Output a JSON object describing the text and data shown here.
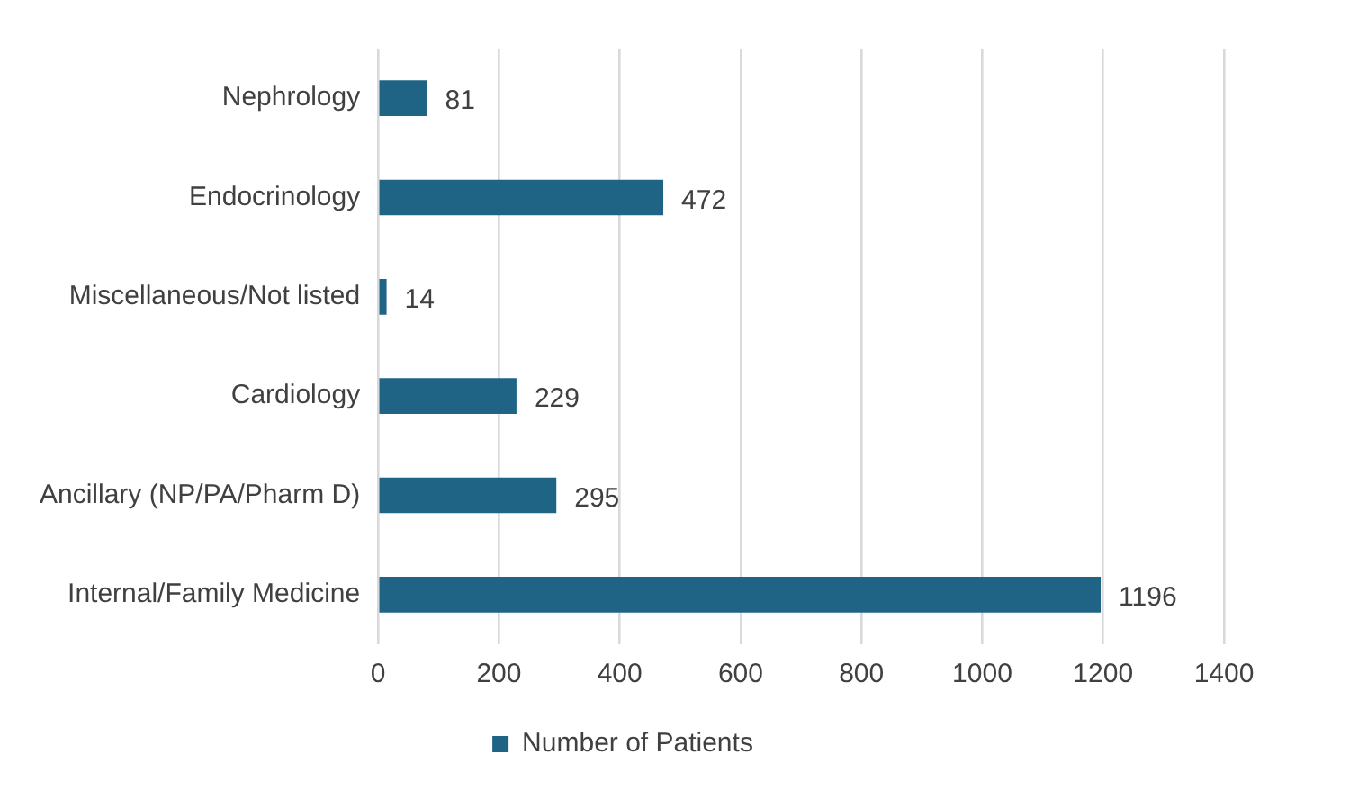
{
  "chart_data": {
    "type": "bar",
    "orientation": "horizontal",
    "categories": [
      "Nephrology",
      "Endocrinology",
      "Miscellaneous/Not listed",
      "Cardiology",
      "Ancillary (NP/PA/Pharm D)",
      "Internal/Family Medicine"
    ],
    "series": [
      {
        "name": "Number of Patients",
        "color": "#1f6385",
        "values": [
          81,
          472,
          14,
          229,
          295,
          1196
        ]
      }
    ],
    "xlim": [
      0,
      1400
    ],
    "xticks": [
      0,
      200,
      400,
      600,
      800,
      1000,
      1200,
      1400
    ],
    "grid": "x",
    "legend": "bottom",
    "data_labels": true
  }
}
